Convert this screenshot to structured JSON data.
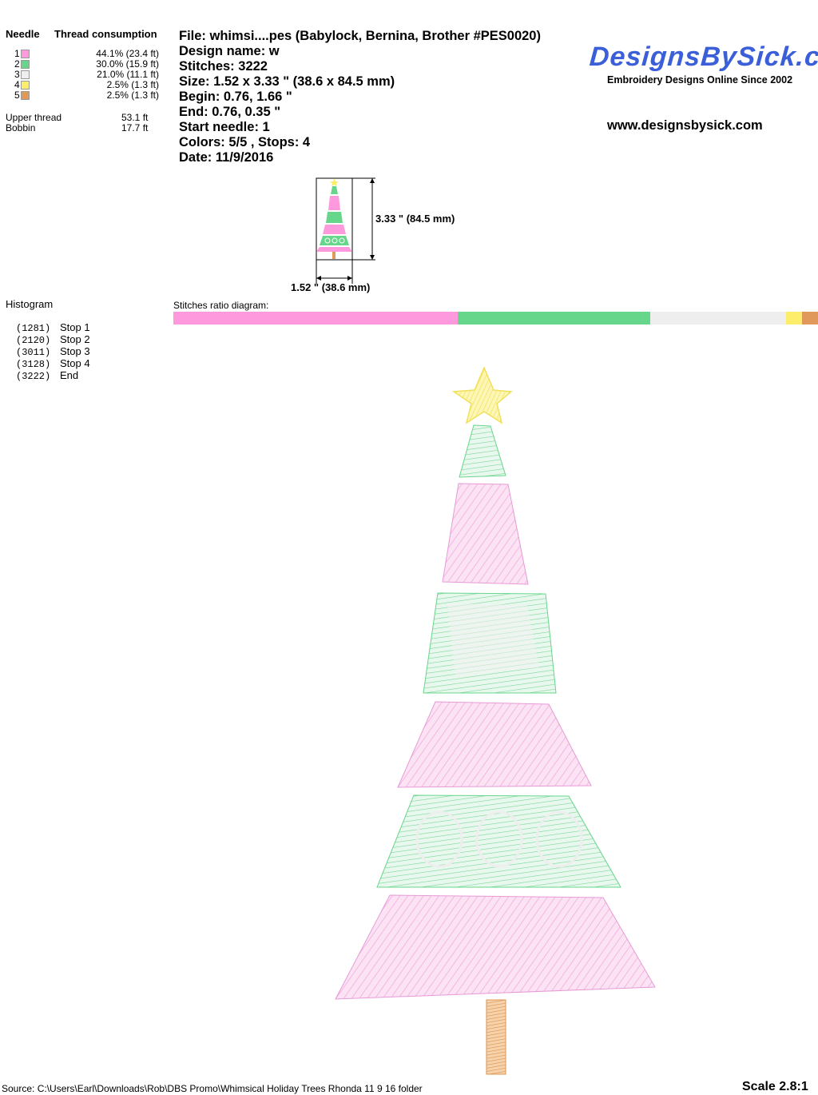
{
  "needle_table": {
    "header_needle": "Needle",
    "header_consumption": "Thread consumption",
    "needles": [
      {
        "num": "1",
        "color": "#ff99dd",
        "pct": "44.1% (23.4 ft)"
      },
      {
        "num": "2",
        "color": "#66d68a",
        "pct": "30.0% (15.9 ft)"
      },
      {
        "num": "3",
        "color": "#eeeeee",
        "pct": "21.0% (11.1 ft)"
      },
      {
        "num": "4",
        "color": "#fcee6a",
        "pct": "2.5% (1.3 ft)"
      },
      {
        "num": "5",
        "color": "#e0995a",
        "pct": "2.5% (1.3 ft)"
      }
    ],
    "upper_thread_label": "Upper thread",
    "upper_thread_value": "53.1 ft",
    "bobbin_label": "Bobbin",
    "bobbin_value": "17.7 ft"
  },
  "design_info": {
    "file": "File: whimsi....pes  (Babylock, Bernina, Brother #PES0020)",
    "design_name": "Design name: w",
    "stitches": "Stitches: 3222",
    "size": "Size: 1.52 x 3.33 \" (38.6 x 84.5 mm)",
    "begin": "Begin: 0.76, 1.66 \"",
    "end": "End: 0.76, 0.35 \"",
    "start_needle": "Start needle: 1",
    "colors_stops": "Colors: 5/5 , Stops: 4",
    "date": "Date: 11/9/2016"
  },
  "brand": {
    "logo": "DesignsBySick.com",
    "tagline": "Embroidery Designs Online Since 2002",
    "url": "www.designsbysick.com"
  },
  "thumbnail": {
    "height_label": "3.33 \" (84.5 mm)",
    "width_label": "1.52 \" (38.6 mm)"
  },
  "histogram": {
    "title": "Histogram",
    "rows": [
      {
        "count": "(1281)",
        "label": "Stop 1"
      },
      {
        "count": "(2120)",
        "label": "Stop 2"
      },
      {
        "count": "(3011)",
        "label": "Stop 3"
      },
      {
        "count": "(3128)",
        "label": "Stop 4"
      },
      {
        "count": "(3222)",
        "label": "End"
      }
    ]
  },
  "ratio": {
    "label": "Stitches ratio diagram:",
    "segments": [
      {
        "color": "#ff99dd",
        "fraction": 0.441
      },
      {
        "color": "#66d68a",
        "fraction": 0.3
      },
      {
        "color": "#eeeeee",
        "fraction": 0.21
      },
      {
        "color": "#fcee6a",
        "fraction": 0.025
      },
      {
        "color": "#e0995a",
        "fraction": 0.025
      }
    ]
  },
  "footer": {
    "source": "Source: C:\\Users\\Earl\\Downloads\\Rob\\DBS Promo\\Whimsical Holiday Trees  Rhonda 11 9 16 folder",
    "scale": "Scale 2.8:1"
  }
}
